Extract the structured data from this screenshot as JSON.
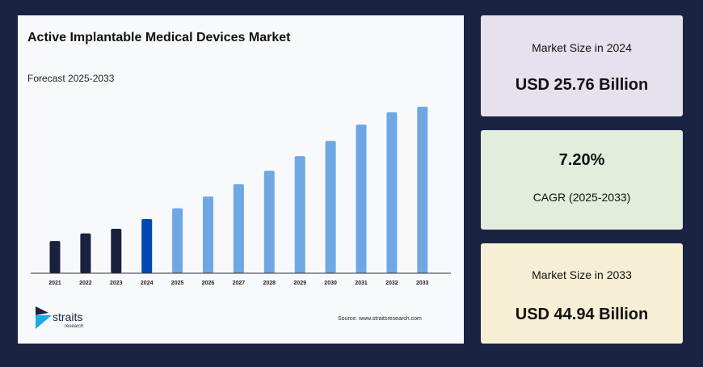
{
  "chart_data": {
    "type": "bar",
    "title": "Active Implantable Medical Devices Market",
    "subtitle": "Forecast 2025-2033",
    "categories": [
      "2021",
      "2022",
      "2023",
      "2024",
      "2025",
      "2026",
      "2027",
      "2028",
      "2029",
      "2030",
      "2031",
      "2032",
      "2033"
    ],
    "values": [
      22.0,
      23.3,
      24.1,
      25.76,
      27.6,
      29.6,
      31.7,
      34.0,
      36.5,
      39.1,
      41.9,
      44.0,
      44.94
    ],
    "xlabel": "",
    "ylabel": "",
    "ylim": [
      16.5,
      45.5
    ],
    "grid": false,
    "colors": {
      "historical": "#19213d",
      "base_year": "#0047b3",
      "forecast": "#6ea7e3",
      "axis": "#333333"
    }
  },
  "source": "Source: www.straitsresearch.com",
  "logo": {
    "name": "straits",
    "sub": "research"
  },
  "cards": [
    {
      "label": "Market Size in 2024",
      "value": "USD 25.76 Billion",
      "bg": "#e6e1ec"
    },
    {
      "label": "CAGR (2025-2033)",
      "value": "7.20%",
      "bg": "#e2eddb"
    },
    {
      "label": "Market Size in 2033",
      "value": "USD 44.94 Billion",
      "bg": "#f6efd6"
    }
  ]
}
